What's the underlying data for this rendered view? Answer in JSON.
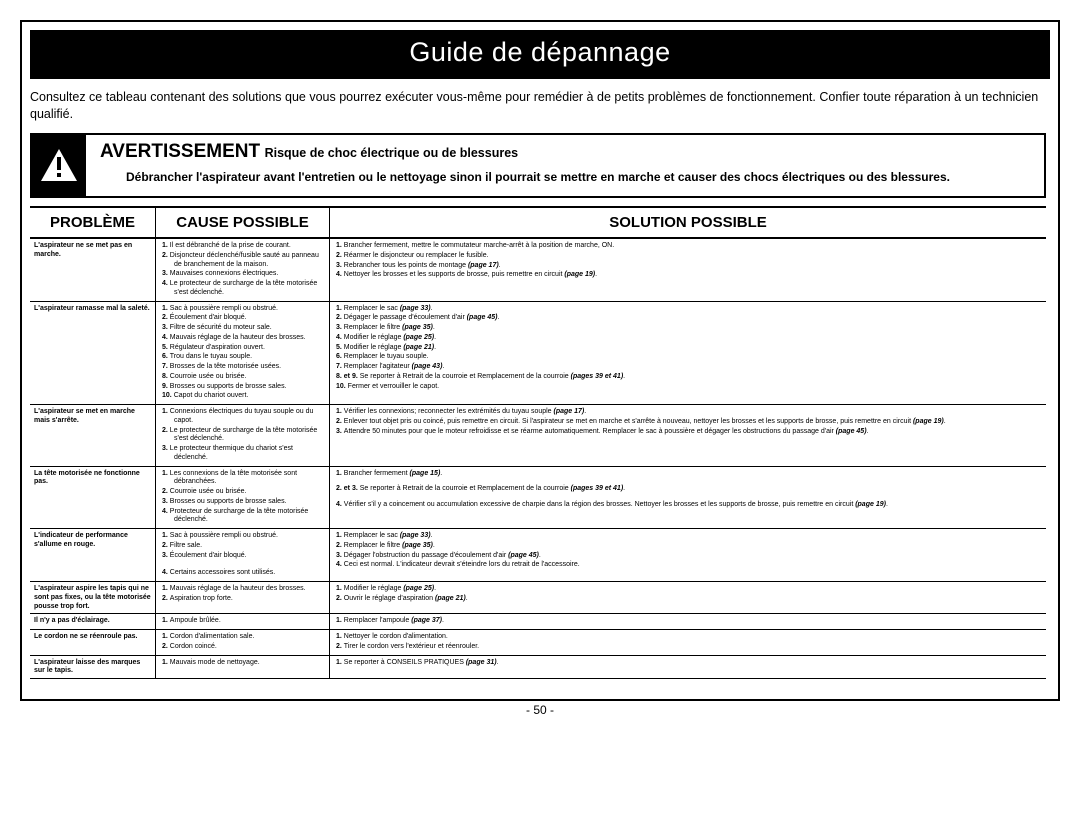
{
  "title": "Guide de dépannage",
  "intro": "Consultez ce tableau contenant des solutions que vous pourrez exécuter vous-même pour remédier à de petits problèmes de fonctionnement. Confier toute réparation à un technicien qualifié.",
  "warning": {
    "heading": "AVERTISSEMENT",
    "sub": "Risque de choc électrique ou de blessures",
    "body": "Débrancher l'aspirateur avant l'entretien ou le nettoyage sinon il pourrait se mettre en marche et causer des chocs électriques ou des blessures."
  },
  "headers": {
    "p": "PROBLÈME",
    "c": "CAUSE POSSIBLE",
    "s": "SOLUTION POSSIBLE"
  },
  "rows": [
    {
      "problem": "L'aspirateur ne se met pas en marche.",
      "causes": [
        "Il est débranché de la prise de courant.",
        "Disjoncteur déclenché/fusible sauté au panneau de branchement de la maison.",
        "Mauvaises connexions électriques.",
        "Le protecteur de surcharge de la tête motorisée s'est déclenché."
      ],
      "solutions": [
        "Brancher fermement, mettre le commutateur marche-arrêt à la position de marche, ON.",
        "Réarmer le disjoncteur ou remplacer le fusible.",
        "Rebrancher tous les points de montage <span class='pg'>(page 17)</span>.",
        "Nettoyer les brosses et les supports de brosse, puis remettre en circuit <span class='pg'>(page 19)</span>."
      ]
    },
    {
      "problem": "L'aspirateur ramasse mal la saleté.",
      "causes": [
        "Sac à poussière rempli ou obstrué.",
        "Écoulement d'air bloqué.",
        "Filtre de sécurité du moteur sale.",
        "Mauvais réglage de la hauteur des brosses.",
        "Régulateur d'aspiration ouvert.",
        "Trou dans le tuyau souple.",
        "Brosses de la tête motorisée usées.",
        "Courroie usée ou brisée.",
        "Brosses ou supports de brosse sales.",
        "Capot du chariot ouvert."
      ],
      "solutions_raw": "<ol><li>Remplacer le sac <span class='pg'>(page 33)</span>.</li><li>Dégager le passage d'écoulement d'air <span class='pg'>(page 45)</span>.</li><li>Remplacer le filtre <span class='pg'>(page 35)</span>.</li><li>Modifier le réglage <span class='pg'>(page 25)</span>.</li><li>Modifier le réglage <span class='pg'>(page 21)</span>.</li><li>Remplacer le tuyau souple.</li><li>Remplacer l'agitateur <span class='pg'>(page 43)</span>.</li></ol><div class='free-li'><b>8. et 9.</b> Se reporter à Retrait de la courroie et Remplacement de la courroie <span class='pg'>(pages 39 et 41)</span>.</div><div class='free-li'><b>10.</b> Fermer et verrouiller le capot.</div>"
    },
    {
      "problem": "L'aspirateur se met en marche mais s'arrête.",
      "causes": [
        "Connexions électriques du tuyau souple ou du capot.",
        "Le protecteur de surcharge de la tête motorisée s'est déclenché.",
        "Le protecteur thermique du chariot s'est déclenché."
      ],
      "solutions": [
        "Vérifier les connexions; reconnecter les extrémités du tuyau souple <span class='pg'>(page 17)</span>.",
        "Enlever tout objet pris ou coincé, puis remettre en circuit. Si l'aspirateur se met en marche et s'arrête à nouveau, nettoyer les brosses et les supports de brosse, puis remettre en circuit <span class='pg'>(page 19)</span>.",
        "Attendre 50 minutes pour que le moteur refroidisse et se réarme automatiquement. Remplacer le sac à poussière et dégager les obstructions du passage d'air <span class='pg'>(page 45)</span>."
      ]
    },
    {
      "problem": "La tête motorisée ne fonctionne pas.",
      "causes": [
        "Les connexions de la tête motorisée sont débranchées.",
        "Courroie usée ou brisée.",
        "Brosses ou supports de brosse sales.",
        "Protecteur de surcharge de la tête motorisée déclenché."
      ],
      "solutions_raw": "<div class='free-li'><b>1.</b> Brancher fermement <span class='pg'>(page 15)</span>.</div><div style='height:6px'></div><div class='free-li'><b>2. et 3.</b> Se reporter à Retrait de la courroie et Remplacement de la courroie <span class='pg'>(pages 39 et 41)</span>.</div><div style='height:6px'></div><div class='free-li'><b>4.</b> Vérifier s'il y a coincement ou accumulation excessive de charpie dans la région des brosses. Nettoyer les brosses et les supports de brosse, puis remettre en circuit <span class='pg'>(page 19)</span>.</div>"
    },
    {
      "problem": "L'indicateur de performance s'allume en rouge.",
      "causes_raw": "<div class='free-li'><b>1.</b> Sac à poussière rempli ou obstrué.</div><div class='free-li'><b>2.</b> Filtre sale.</div><div class='free-li'><b>3.</b> Écoulement d'air bloqué.</div><div style='height:8px'></div><div class='free-li'><b>4.</b> Certains accessoires sont utilisés.</div>",
      "solutions_raw": "<div class='free-li'><b>1.</b> Remplacer le sac <span class='pg'>(page 33)</span>.</div><div class='free-li'><b>2.</b> Remplacer le filtre <span class='pg'>(page 35)</span>.</div><div class='free-li'><b>3.</b> Dégager l'obstruction du passage d'écoulement d'air <span class='pg'>(page 45)</span>.</div><div class='free-li'><b>4.</b> Ceci est normal. L'indicateur devrait s'éteindre lors du retrait de l'accessoire.</div>"
    },
    {
      "problem": "L'aspirateur aspire les tapis qui ne sont pas fixes, ou la tête motorisée pousse trop fort.",
      "causes": [
        "Mauvais réglage de la hauteur des brosses.",
        "Aspiration trop forte."
      ],
      "solutions": [
        "Modifier le réglage <span class='pg'>(page 25)</span>.",
        "Ouvrir le réglage d'aspiration <span class='pg'>(page 21)</span>."
      ]
    },
    {
      "problem": "Il n'y a pas d'éclairage.",
      "causes": [
        "Ampoule brûlée."
      ],
      "solutions": [
        "Remplacer l'ampoule <span class='pg'>(page 37)</span>."
      ]
    },
    {
      "problem": "Le cordon ne se réenroule pas.",
      "causes": [
        "Cordon d'alimentation sale.",
        "Cordon coincé."
      ],
      "solutions": [
        "Nettoyer le cordon d'alimentation.",
        "Tirer le cordon vers l'extérieur et réenrouler."
      ]
    },
    {
      "problem": "L'aspirateur laisse des marques sur le tapis.",
      "causes": [
        "Mauvais mode de nettoyage."
      ],
      "solutions": [
        "Se reporter à CONSEILS PRATIQUES <span class='pg'>(page 31)</span>."
      ]
    }
  ],
  "pagenum": "- 50 -"
}
